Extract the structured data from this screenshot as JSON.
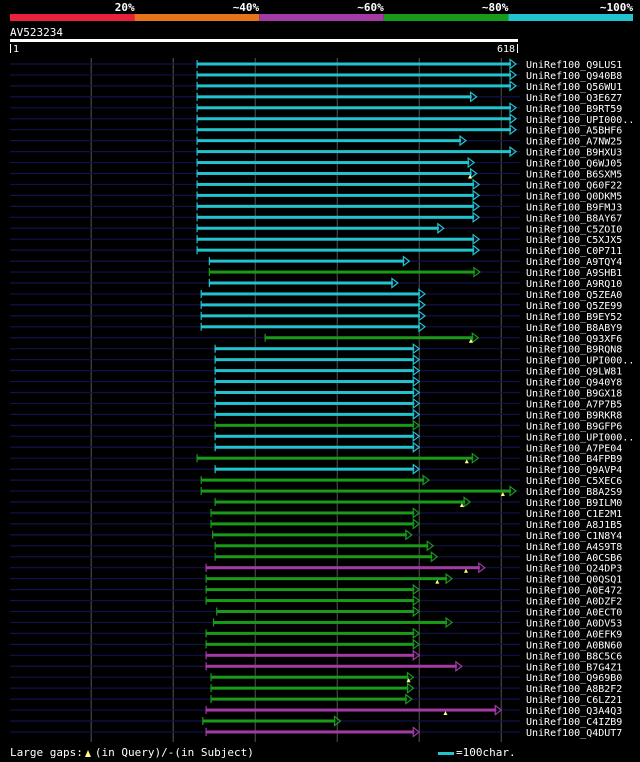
{
  "colors": {
    "background": "#000000",
    "cyan": "#22c3cf",
    "green": "#1a9a1a",
    "magenta": "#a43aa4",
    "dark_line": "#12124a",
    "grid": "#555555",
    "legend_red": "#e8223a",
    "legend_orange": "#e8741a",
    "legend_purple": "#a43aa4",
    "legend_green": "#1a9a1a",
    "legend_cyan": "#22c3cf"
  },
  "legend": [
    {
      "label": "20%",
      "color": "#e8223a"
    },
    {
      "label": "~40%",
      "color": "#e8741a"
    },
    {
      "label": "~60%",
      "color": "#a43aa4"
    },
    {
      "label": "~80%",
      "color": "#1a9a1a"
    },
    {
      "label": "~100%",
      "color": "#22c3cf"
    }
  ],
  "query": {
    "name": "AV523234",
    "start": "1",
    "end": "618",
    "length": 618
  },
  "footer": {
    "gaps_label": "Large gaps:",
    "gap_query": "(in Query)/",
    "gap_subject": "(in Subject)",
    "scale_label": "=100char."
  },
  "chart_data": {
    "type": "alignment",
    "x_range": [
      1,
      618
    ],
    "alignments": [
      {
        "name": "UniRef100_Q9LUS1",
        "color": "cyan",
        "start": 229,
        "end": 618,
        "gap": null
      },
      {
        "name": "UniRef100_Q940B8",
        "color": "cyan",
        "start": 229,
        "end": 618,
        "gap": null
      },
      {
        "name": "UniRef100_Q56WU1",
        "color": "cyan",
        "start": 229,
        "end": 618,
        "gap": null
      },
      {
        "name": "UniRef100_Q3E6Z7",
        "color": "cyan",
        "start": 229,
        "end": 570,
        "gap": null
      },
      {
        "name": "UniRef100_B9RT59",
        "color": "cyan",
        "start": 229,
        "end": 618,
        "gap": null
      },
      {
        "name": "UniRef100_UPI000..",
        "color": "cyan",
        "start": 229,
        "end": 618,
        "gap": null
      },
      {
        "name": "UniRef100_A5BHF6",
        "color": "cyan",
        "start": 229,
        "end": 618,
        "gap": null
      },
      {
        "name": "UniRef100_A7NW25",
        "color": "cyan",
        "start": 229,
        "end": 557,
        "gap": null
      },
      {
        "name": "UniRef100_B9HXU3",
        "color": "cyan",
        "start": 229,
        "end": 618,
        "gap": null
      },
      {
        "name": "UniRef100_Q6WJ05",
        "color": "cyan",
        "start": 229,
        "end": 567,
        "gap": null
      },
      {
        "name": "UniRef100_B6SXM5",
        "color": "cyan",
        "start": 229,
        "end": 570,
        "gap": 562
      },
      {
        "name": "UniRef100_Q60F22",
        "color": "cyan",
        "start": 229,
        "end": 573,
        "gap": null
      },
      {
        "name": "UniRef100_Q0DKM5",
        "color": "cyan",
        "start": 229,
        "end": 573,
        "gap": null
      },
      {
        "name": "UniRef100_B9FMJ3",
        "color": "cyan",
        "start": 229,
        "end": 573,
        "gap": null
      },
      {
        "name": "UniRef100_B8AY67",
        "color": "cyan",
        "start": 229,
        "end": 573,
        "gap": null
      },
      {
        "name": "UniRef100_C5ZOI0",
        "color": "cyan",
        "start": 229,
        "end": 530,
        "gap": null
      },
      {
        "name": "UniRef100_C5XJX5",
        "color": "cyan",
        "start": 229,
        "end": 573,
        "gap": null
      },
      {
        "name": "UniRef100_C0P711",
        "color": "cyan",
        "start": 229,
        "end": 573,
        "gap": null
      },
      {
        "name": "UniRef100_A9TQY4",
        "color": "cyan",
        "start": 244,
        "end": 488,
        "gap": null
      },
      {
        "name": "UniRef100_A9SHB1",
        "color": "green",
        "start": 244,
        "end": 574,
        "gap": null
      },
      {
        "name": "UniRef100_A9RQ10",
        "color": "cyan",
        "start": 244,
        "end": 474,
        "gap": null
      },
      {
        "name": "UniRef100_Q5ZEA0",
        "color": "cyan",
        "start": 234,
        "end": 507,
        "gap": null
      },
      {
        "name": "UniRef100_Q5ZE99",
        "color": "cyan",
        "start": 234,
        "end": 507,
        "gap": null
      },
      {
        "name": "UniRef100_B9EY52",
        "color": "cyan",
        "start": 234,
        "end": 507,
        "gap": null
      },
      {
        "name": "UniRef100_B8ABY9",
        "color": "cyan",
        "start": 234,
        "end": 507,
        "gap": null
      },
      {
        "name": "UniRef100_Q93XF6",
        "color": "green",
        "start": 312,
        "end": 572,
        "gap": 563
      },
      {
        "name": "UniRef100_B9RQN8",
        "color": "cyan",
        "start": 251,
        "end": 500,
        "gap": null
      },
      {
        "name": "UniRef100_UPI000..",
        "color": "cyan",
        "start": 251,
        "end": 500,
        "gap": null
      },
      {
        "name": "UniRef100_Q9LW81",
        "color": "cyan",
        "start": 251,
        "end": 500,
        "gap": null
      },
      {
        "name": "UniRef100_Q940Y8",
        "color": "cyan",
        "start": 251,
        "end": 500,
        "gap": null
      },
      {
        "name": "UniRef100_B9GX18",
        "color": "cyan",
        "start": 251,
        "end": 500,
        "gap": null
      },
      {
        "name": "UniRef100_A7P7B5",
        "color": "cyan",
        "start": 251,
        "end": 500,
        "gap": null
      },
      {
        "name": "UniRef100_B9RKR8",
        "color": "cyan",
        "start": 251,
        "end": 500,
        "gap": null
      },
      {
        "name": "UniRef100_B9GFP6",
        "color": "green",
        "start": 251,
        "end": 500,
        "gap": null
      },
      {
        "name": "UniRef100_UPI000..",
        "color": "cyan",
        "start": 251,
        "end": 500,
        "gap": null
      },
      {
        "name": "UniRef100_A7PE04",
        "color": "cyan",
        "start": 251,
        "end": 500,
        "gap": null
      },
      {
        "name": "UniRef100_B4FPB9",
        "color": "green",
        "start": 229,
        "end": 572,
        "gap": 558
      },
      {
        "name": "UniRef100_Q9AVP4",
        "color": "cyan",
        "start": 251,
        "end": 500,
        "gap": null
      },
      {
        "name": "UniRef100_C5XEC6",
        "color": "green",
        "start": 234,
        "end": 512,
        "gap": null
      },
      {
        "name": "UniRef100_B8A2S9",
        "color": "green",
        "start": 234,
        "end": 618,
        "gap": 602
      },
      {
        "name": "UniRef100_B9ILM0",
        "color": "green",
        "start": 251,
        "end": 562,
        "gap": 552
      },
      {
        "name": "UniRef100_C1E2M1",
        "color": "green",
        "start": 246,
        "end": 500,
        "gap": null
      },
      {
        "name": "UniRef100_A8J1B5",
        "color": "green",
        "start": 246,
        "end": 500,
        "gap": null
      },
      {
        "name": "UniRef100_C1N8Y4",
        "color": "green",
        "start": 248,
        "end": 491,
        "gap": null
      },
      {
        "name": "UniRef100_A4S9T8",
        "color": "green",
        "start": 251,
        "end": 517,
        "gap": null
      },
      {
        "name": "UniRef100_A0CSB6",
        "color": "green",
        "start": 251,
        "end": 522,
        "gap": null
      },
      {
        "name": "UniRef100_Q24DP3",
        "color": "magenta",
        "start": 240,
        "end": 580,
        "gap": 557
      },
      {
        "name": "UniRef100_Q0QSQ1",
        "color": "green",
        "start": 240,
        "end": 540,
        "gap": 522
      },
      {
        "name": "UniRef100_A0E472",
        "color": "green",
        "start": 240,
        "end": 500,
        "gap": null
      },
      {
        "name": "UniRef100_A0DZF2",
        "color": "green",
        "start": 240,
        "end": 500,
        "gap": null
      },
      {
        "name": "UniRef100_A0ECT0",
        "color": "green",
        "start": 253,
        "end": 500,
        "gap": null
      },
      {
        "name": "UniRef100_A0DV53",
        "color": "green",
        "start": 249,
        "end": 540,
        "gap": null
      },
      {
        "name": "UniRef100_A0EFK9",
        "color": "green",
        "start": 240,
        "end": 500,
        "gap": null
      },
      {
        "name": "UniRef100_A0BN60",
        "color": "green",
        "start": 240,
        "end": 500,
        "gap": null
      },
      {
        "name": "UniRef100_B8C5C6",
        "color": "magenta",
        "start": 240,
        "end": 500,
        "gap": null
      },
      {
        "name": "UniRef100_B7G4Z1",
        "color": "magenta",
        "start": 240,
        "end": 552,
        "gap": null
      },
      {
        "name": "UniRef100_Q969B0",
        "color": "green",
        "start": 246,
        "end": 493,
        "gap": 487
      },
      {
        "name": "UniRef100_A8B2F2",
        "color": "green",
        "start": 246,
        "end": 493,
        "gap": null
      },
      {
        "name": "UniRef100_C6LZ21",
        "color": "green",
        "start": 246,
        "end": 491,
        "gap": null
      },
      {
        "name": "UniRef100_Q3A4Q3",
        "color": "magenta",
        "start": 240,
        "end": 600,
        "gap": 532
      },
      {
        "name": "UniRef100_C4IZB9",
        "color": "green",
        "start": 236,
        "end": 404,
        "gap": null
      },
      {
        "name": "UniRef100_Q4DUT7",
        "color": "magenta",
        "start": 240,
        "end": 500,
        "gap": null
      }
    ]
  }
}
